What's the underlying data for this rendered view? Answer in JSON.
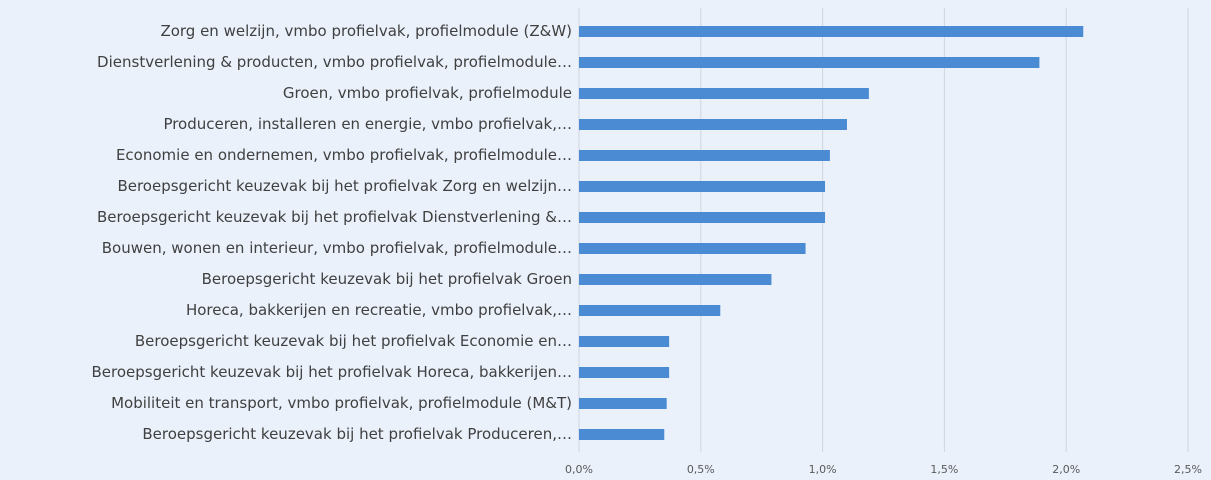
{
  "chart_data": {
    "type": "bar",
    "orientation": "horizontal",
    "categories": [
      "Zorg en welzijn, vmbo profielvak, profielmodule (Z&W)",
      "Dienstverlening & producten, vmbo profielvak, profielmodule…",
      "Groen, vmbo profielvak, profielmodule",
      "Produceren, installeren en energie, vmbo profielvak,…",
      "Economie en ondernemen, vmbo profielvak, profielmodule…",
      "Beroepsgericht keuzevak bij het profielvak Zorg en welzijn…",
      "Beroepsgericht keuzevak bij het profielvak Dienstverlening &…",
      "Bouwen, wonen en interieur, vmbo profielvak, profielmodule…",
      "Beroepsgericht keuzevak bij het profielvak Groen",
      "Horeca, bakkerijen en recreatie, vmbo profielvak,…",
      "Beroepsgericht keuzevak bij het profielvak Economie en…",
      "Beroepsgericht keuzevak bij het profielvak Horeca, bakkerijen…",
      "Mobiliteit en transport, vmbo profielvak, profielmodule (M&T)",
      "Beroepsgericht keuzevak bij het profielvak Produceren,…"
    ],
    "values": [
      2.07,
      1.89,
      1.19,
      1.1,
      1.03,
      1.01,
      1.01,
      0.93,
      0.79,
      0.58,
      0.37,
      0.37,
      0.36,
      0.35
    ],
    "color": "#4a8bd4",
    "xlim": [
      0,
      2.5
    ],
    "xticks": [
      {
        "value": 0,
        "label": "0,0%"
      },
      {
        "value": 0.5,
        "label": "0,5%"
      },
      {
        "value": 1,
        "label": "1,0%"
      },
      {
        "value": 1.5,
        "label": "1,5%"
      },
      {
        "value": 2,
        "label": "2,0%"
      },
      {
        "value": 2.5,
        "label": "2,5%"
      }
    ],
    "grid": true
  }
}
